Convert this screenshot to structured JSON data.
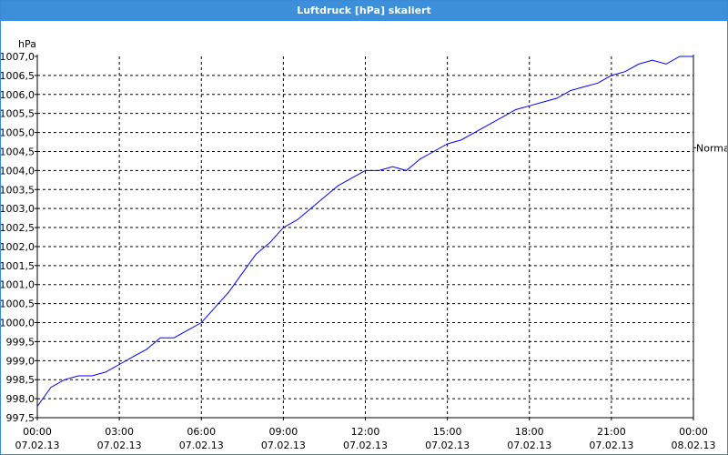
{
  "window": {
    "title": "Luftdruck [hPa] skaliert"
  },
  "chart_data": {
    "type": "line",
    "title": "Luftdruck [hPa] skaliert",
    "ylabel": "hPa",
    "xlabel": "",
    "ylim": [
      997.5,
      1007.0
    ],
    "y_ticks": [
      "1007,0",
      "1006,5",
      "1006,0",
      "1005,5",
      "1005,0",
      "1004,5",
      "1004,0",
      "1003,5",
      "1003,0",
      "1002,5",
      "1002,0",
      "1001,5",
      "1001,0",
      "1000,5",
      "1000,0",
      "999,5",
      "999,0",
      "998,5",
      "998,0",
      "997,5"
    ],
    "x_ticks": [
      {
        "time": "00:00",
        "date": "07.02.13"
      },
      {
        "time": "03:00",
        "date": "07.02.13"
      },
      {
        "time": "06:00",
        "date": "07.02.13"
      },
      {
        "time": "09:00",
        "date": "07.02.13"
      },
      {
        "time": "12:00",
        "date": "07.02.13"
      },
      {
        "time": "15:00",
        "date": "07.02.13"
      },
      {
        "time": "18:00",
        "date": "07.02.13"
      },
      {
        "time": "21:00",
        "date": "07.02.13"
      },
      {
        "time": "00:00",
        "date": "08.02.13"
      }
    ],
    "grid": true,
    "reference_line": {
      "label": "Normal",
      "value": 1004.6
    },
    "series": [
      {
        "color": "#0000ff",
        "x": [
          "07.02.13 00:00",
          "07.02.13 00:30",
          "07.02.13 01:00",
          "07.02.13 01:30",
          "07.02.13 02:00",
          "07.02.13 02:30",
          "07.02.13 03:00",
          "07.02.13 03:30",
          "07.02.13 04:00",
          "07.02.13 04:30",
          "07.02.13 05:00",
          "07.02.13 05:30",
          "07.02.13 06:00",
          "07.02.13 06:30",
          "07.02.13 07:00",
          "07.02.13 07:30",
          "07.02.13 08:00",
          "07.02.13 08:30",
          "07.02.13 09:00",
          "07.02.13 09:30",
          "07.02.13 10:00",
          "07.02.13 10:30",
          "07.02.13 11:00",
          "07.02.13 11:30",
          "07.02.13 12:00",
          "07.02.13 12:30",
          "07.02.13 13:00",
          "07.02.13 13:30",
          "07.02.13 14:00",
          "07.02.13 14:30",
          "07.02.13 15:00",
          "07.02.13 15:30",
          "07.02.13 16:00",
          "07.02.13 16:30",
          "07.02.13 17:00",
          "07.02.13 17:30",
          "07.02.13 18:00",
          "07.02.13 18:30",
          "07.02.13 19:00",
          "07.02.13 19:30",
          "07.02.13 20:00",
          "07.02.13 20:30",
          "07.02.13 21:00",
          "07.02.13 21:30",
          "07.02.13 22:00",
          "07.02.13 22:30",
          "07.02.13 23:00",
          "07.02.13 23:30",
          "08.02.13 00:00"
        ],
        "y": [
          997.8,
          998.3,
          998.5,
          998.6,
          998.6,
          998.7,
          998.9,
          999.1,
          999.3,
          999.6,
          999.6,
          999.8,
          1000.0,
          1000.4,
          1000.8,
          1001.3,
          1001.8,
          1002.1,
          1002.5,
          1002.7,
          1003.0,
          1003.3,
          1003.6,
          1003.8,
          1004.0,
          1004.0,
          1004.1,
          1004.0,
          1004.3,
          1004.5,
          1004.7,
          1004.8,
          1005.0,
          1005.2,
          1005.4,
          1005.6,
          1005.7,
          1005.8,
          1005.9,
          1006.1,
          1006.2,
          1006.3,
          1006.5,
          1006.6,
          1006.8,
          1006.9,
          1006.8,
          1007.0,
          1007.0
        ]
      }
    ]
  }
}
